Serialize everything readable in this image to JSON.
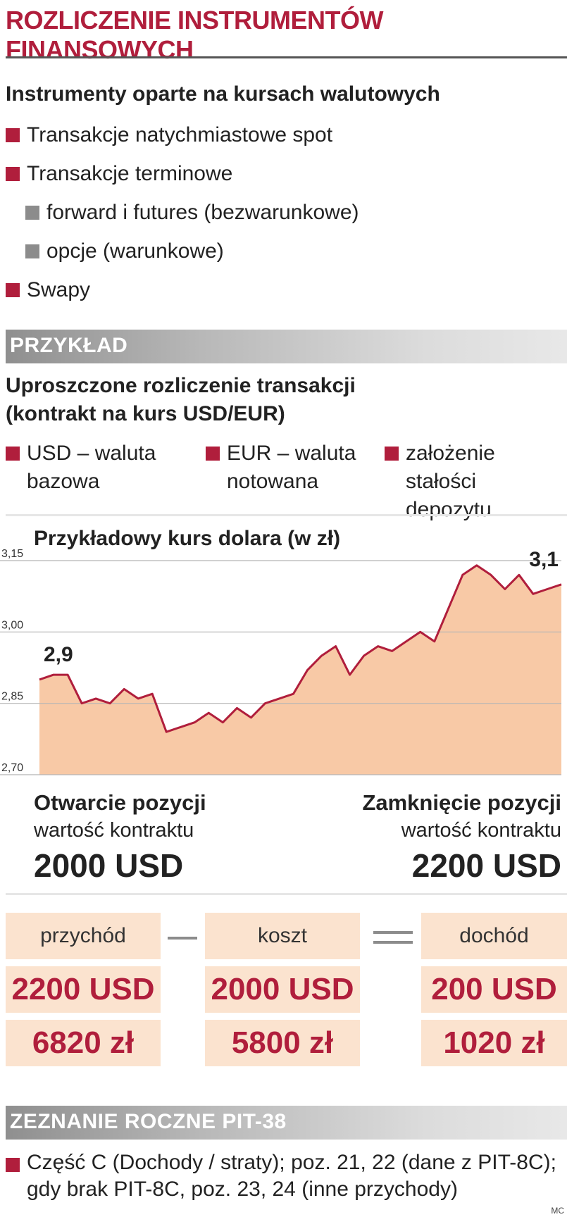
{
  "title": "ROZLICZENIE INSTRUMENTÓW FINANSOWYCH",
  "section1": {
    "heading": "Instrumenty oparte na kursach walutowych",
    "items": [
      {
        "label": "Transakcje natychmiastowe spot",
        "level": 0
      },
      {
        "label": "Transakcje terminowe",
        "level": 0
      },
      {
        "label": "forward i futures (bezwarunkowe)",
        "level": 1
      },
      {
        "label": "opcje (warunkowe)",
        "level": 1
      },
      {
        "label": "Swapy",
        "level": 0
      }
    ]
  },
  "example": {
    "band": "PRZYKŁAD",
    "heading_line1": "Uproszczone rozliczenie transakcji",
    "heading_line2": "(kontrakt na kurs USD/EUR)",
    "legend": [
      {
        "line1": "USD – waluta",
        "line2": "bazowa"
      },
      {
        "line1": "EUR – waluta",
        "line2": "notowana"
      },
      {
        "line1": "założenie stałości",
        "line2": "depozytu"
      }
    ]
  },
  "chart_data": {
    "type": "area",
    "title": "Przykładowy kurs dolara (w zł)",
    "xlabel": "",
    "ylabel": "",
    "ylim": [
      2.7,
      3.15
    ],
    "yticks": [
      "3,15",
      "3,00",
      "2,85",
      "2,70"
    ],
    "grid": true,
    "x": [
      0,
      1,
      2,
      3,
      4,
      5,
      6,
      7,
      8,
      9,
      10,
      11,
      12,
      13,
      14,
      15,
      16,
      17,
      18,
      19,
      20,
      21,
      22,
      23,
      24,
      25,
      26,
      27,
      28,
      29,
      30,
      31,
      32,
      33,
      34,
      35,
      36,
      37
    ],
    "values": [
      2.9,
      2.91,
      2.91,
      2.85,
      2.86,
      2.85,
      2.88,
      2.86,
      2.87,
      2.79,
      2.8,
      2.81,
      2.83,
      2.81,
      2.84,
      2.82,
      2.85,
      2.86,
      2.87,
      2.92,
      2.95,
      2.97,
      2.91,
      2.95,
      2.97,
      2.96,
      2.98,
      3.0,
      2.98,
      3.05,
      3.12,
      3.14,
      3.12,
      3.09,
      3.12,
      3.08,
      3.09,
      3.1
    ],
    "annotations": [
      {
        "text": "2,9",
        "index": 0
      },
      {
        "text": "3,1",
        "index": 37
      }
    ],
    "colors": {
      "line": "#b01e3c",
      "fill": "#f8c9a6",
      "grid": "#b5b5b5"
    }
  },
  "positions": {
    "open": {
      "label": "Otwarcie pozycji",
      "sublabel": "wartość kontraktu",
      "value": "2000 USD"
    },
    "close": {
      "label": "Zamknięcie pozycji",
      "sublabel": "wartość kontraktu",
      "value": "2200 USD"
    }
  },
  "calc": {
    "columns": [
      {
        "header": "przychód",
        "usd": "2200 USD",
        "pln": "6820 zł"
      },
      {
        "header": "koszt",
        "usd": "2000 USD",
        "pln": "5800 zł"
      },
      {
        "header": "dochód",
        "usd": "200 USD",
        "pln": "1020 zł"
      }
    ],
    "operators": [
      "minus",
      "equals"
    ]
  },
  "pit": {
    "band": "ZEZNANIE ROCZNE PIT-38",
    "item_line1": "Część C (Dochody / straty); poz. 21, 22 (dane z PIT-8C);",
    "item_line2": "gdy brak PIT-8C, poz. 23, 24 (inne przychody)"
  },
  "credit": "MC",
  "colors": {
    "accent": "#b01e3c",
    "bullet_gray": "#8c8c8c",
    "cell_bg": "#fbe3cf"
  }
}
